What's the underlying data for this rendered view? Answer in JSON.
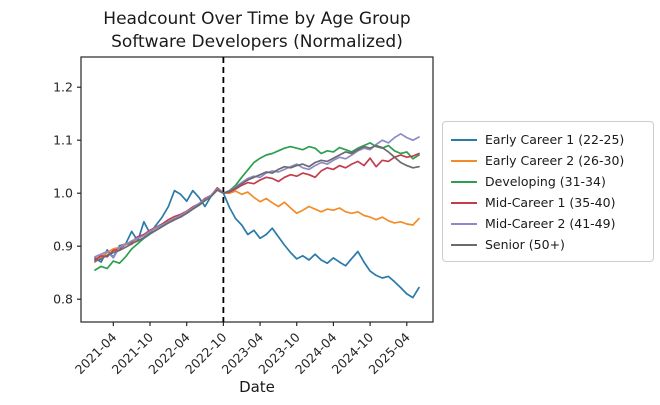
{
  "figure": {
    "title_line1": "Headcount Over Time by Age Group",
    "title_line2": "Software Developers (Normalized)",
    "xlabel": "Date"
  },
  "chart_data": {
    "type": "line",
    "title": "Headcount Over Time by Age Group",
    "subtitle": "Software Developers (Normalized)",
    "xlabel": "Date",
    "ylabel": "",
    "grid": false,
    "legend_position": "right-outside",
    "ylim": [
      0.757,
      1.257
    ],
    "yticks": [
      "0.8",
      "0.9",
      "1.0",
      "1.1",
      "1.2"
    ],
    "ytick_values": [
      0.8,
      0.9,
      1.0,
      1.1,
      1.2
    ],
    "x_frequency": "monthly",
    "x_start": "2021-01",
    "x_end": "2025-06",
    "n_points": 54,
    "xtick_labels": [
      "2021-04",
      "2021-10",
      "2022-04",
      "2022-10",
      "2023-04",
      "2023-10",
      "2024-04",
      "2024-10",
      "2025-04"
    ],
    "xtick_indices": [
      3,
      9,
      15,
      21,
      27,
      33,
      39,
      45,
      51
    ],
    "vline": {
      "at_index": 21,
      "at_label": "2022-10",
      "style": "dashed",
      "color": "#000000"
    },
    "series": [
      {
        "name": "Early Career 1 (22-25)",
        "color": "#2a7aa9",
        "values": [
          0.878,
          0.87,
          0.893,
          0.879,
          0.901,
          0.904,
          0.928,
          0.91,
          0.946,
          0.924,
          0.94,
          0.955,
          0.975,
          1.005,
          0.998,
          0.985,
          1.005,
          0.992,
          0.975,
          0.995,
          1.008,
          1.0,
          0.973,
          0.952,
          0.94,
          0.922,
          0.93,
          0.915,
          0.922,
          0.934,
          0.918,
          0.902,
          0.888,
          0.876,
          0.882,
          0.874,
          0.885,
          0.874,
          0.868,
          0.878,
          0.87,
          0.863,
          0.877,
          0.89,
          0.87,
          0.853,
          0.845,
          0.84,
          0.843,
          0.833,
          0.822,
          0.81,
          0.803,
          0.822
        ]
      },
      {
        "name": "Early Career 2 (26-30)",
        "color": "#f28c28",
        "values": [
          0.87,
          0.88,
          0.888,
          0.895,
          0.898,
          0.905,
          0.903,
          0.916,
          0.92,
          0.928,
          0.934,
          0.942,
          0.945,
          0.95,
          0.96,
          0.962,
          0.97,
          0.978,
          0.99,
          0.994,
          1.01,
          1.0,
          1.0,
          1.004,
          0.998,
          1.002,
          0.992,
          0.984,
          0.99,
          0.982,
          0.975,
          0.983,
          0.972,
          0.962,
          0.968,
          0.975,
          0.97,
          0.965,
          0.97,
          0.968,
          0.972,
          0.965,
          0.962,
          0.965,
          0.958,
          0.955,
          0.95,
          0.955,
          0.948,
          0.944,
          0.946,
          0.942,
          0.94,
          0.952
        ]
      },
      {
        "name": "Developing (31-34)",
        "color": "#2e9e4f",
        "values": [
          0.855,
          0.862,
          0.858,
          0.872,
          0.868,
          0.88,
          0.895,
          0.905,
          0.915,
          0.923,
          0.93,
          0.938,
          0.944,
          0.95,
          0.956,
          0.962,
          0.97,
          0.977,
          0.986,
          0.996,
          1.006,
          1.0,
          1.005,
          1.015,
          1.03,
          1.044,
          1.058,
          1.066,
          1.072,
          1.075,
          1.08,
          1.085,
          1.088,
          1.085,
          1.082,
          1.088,
          1.085,
          1.075,
          1.08,
          1.078,
          1.086,
          1.082,
          1.078,
          1.085,
          1.09,
          1.095,
          1.088,
          1.085,
          1.09,
          1.08,
          1.075,
          1.078,
          1.065,
          1.072
        ]
      },
      {
        "name": "Mid-Career 1 (35-40)",
        "color": "#c43c4c",
        "values": [
          0.875,
          0.882,
          0.88,
          0.892,
          0.895,
          0.903,
          0.908,
          0.918,
          0.922,
          0.93,
          0.936,
          0.942,
          0.95,
          0.956,
          0.96,
          0.966,
          0.974,
          0.98,
          0.99,
          0.996,
          1.01,
          1.0,
          1.002,
          1.008,
          1.015,
          1.02,
          1.018,
          1.025,
          1.03,
          1.028,
          1.022,
          1.03,
          1.035,
          1.032,
          1.038,
          1.035,
          1.03,
          1.042,
          1.048,
          1.045,
          1.052,
          1.048,
          1.055,
          1.06,
          1.052,
          1.066,
          1.05,
          1.062,
          1.06,
          1.068,
          1.072,
          1.068,
          1.07,
          1.075
        ]
      },
      {
        "name": "Mid-Career 2 (41-49)",
        "color": "#8c8bc9",
        "values": [
          0.88,
          0.885,
          0.89,
          0.878,
          0.898,
          0.903,
          0.91,
          0.915,
          0.92,
          0.928,
          0.935,
          0.94,
          0.946,
          0.952,
          0.958,
          0.965,
          0.972,
          0.98,
          0.988,
          0.996,
          1.008,
          1.0,
          1.005,
          1.012,
          1.02,
          1.028,
          1.032,
          1.03,
          1.038,
          1.042,
          1.04,
          1.045,
          1.05,
          1.055,
          1.048,
          1.045,
          1.052,
          1.058,
          1.055,
          1.062,
          1.068,
          1.065,
          1.072,
          1.08,
          1.085,
          1.082,
          1.092,
          1.1,
          1.095,
          1.105,
          1.112,
          1.105,
          1.1,
          1.106
        ]
      },
      {
        "name": "Senior (50+)",
        "color": "#6e6871",
        "values": [
          0.872,
          0.876,
          0.883,
          0.888,
          0.892,
          0.898,
          0.905,
          0.91,
          0.916,
          0.924,
          0.93,
          0.937,
          0.944,
          0.95,
          0.955,
          0.962,
          0.97,
          0.978,
          0.986,
          0.994,
          1.006,
          1.0,
          1.004,
          1.01,
          1.018,
          1.025,
          1.03,
          1.035,
          1.04,
          1.038,
          1.045,
          1.05,
          1.048,
          1.052,
          1.055,
          1.05,
          1.058,
          1.062,
          1.06,
          1.066,
          1.072,
          1.078,
          1.075,
          1.082,
          1.088,
          1.085,
          1.09,
          1.086,
          1.078,
          1.068,
          1.058,
          1.052,
          1.048,
          1.05
        ]
      }
    ]
  }
}
